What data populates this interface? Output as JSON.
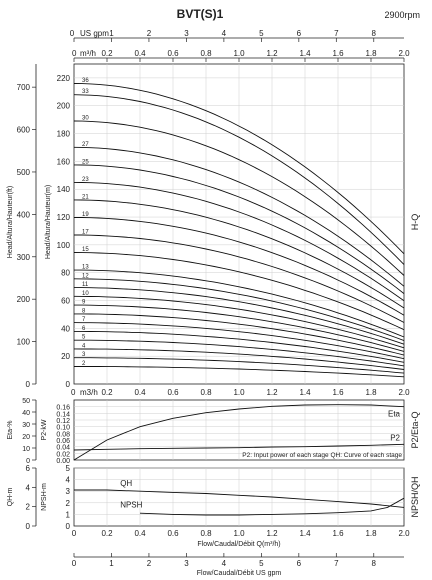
{
  "header": {
    "title": "BVT(S)1",
    "speed": "2900rpm"
  },
  "chart_data": [
    {
      "type": "line",
      "name": "H-Q",
      "side_label": "H-Q",
      "top_unit_gpm": "US gpm",
      "top_unit_m3h": "m³/h",
      "bottom_unit_m3h": "m3/h",
      "ylabel_m": "Head/Altura/Hauteur(m)",
      "ylabel_ft": "Head/Altura/Hauteur(ft)",
      "xlim": [
        0,
        2
      ],
      "ylim": [
        0,
        230
      ],
      "x_ticks": [
        "0",
        "0.2",
        "0.4",
        "0.6",
        "0.8",
        "1.0",
        "1.2",
        "1.4",
        "1.6",
        "1.8",
        "2.0"
      ],
      "x_ticks_bottom": [
        "0",
        "0.2",
        "0.4",
        "0.6",
        "0.8",
        "1.0",
        "1.2",
        "1.4",
        "1.6",
        "1.8",
        "2.0"
      ],
      "gpm_ticks": [
        "0",
        "1",
        "2",
        "3",
        "4",
        "5",
        "6",
        "7",
        "8"
      ],
      "y_ticks_m": [
        "0",
        "20",
        "40",
        "60",
        "80",
        "100",
        "120",
        "140",
        "160",
        "180",
        "200",
        "220"
      ],
      "y_ticks_ft": [
        "0",
        "100",
        "200",
        "300",
        "400",
        "500",
        "600",
        "700"
      ],
      "stage_curves": [
        {
          "label": "2",
          "head_at_0": 12.6,
          "head_at_2": 5.2
        },
        {
          "label": "3",
          "head_at_0": 18.9,
          "head_at_2": 7.8
        },
        {
          "label": "4",
          "head_at_0": 25.2,
          "head_at_2": 10.4
        },
        {
          "label": "5",
          "head_at_0": 31.5,
          "head_at_2": 13
        },
        {
          "label": "6",
          "head_at_0": 37.8,
          "head_at_2": 15.6
        },
        {
          "label": "7",
          "head_at_0": 44.1,
          "head_at_2": 18.2
        },
        {
          "label": "8",
          "head_at_0": 50.4,
          "head_at_2": 20.8
        },
        {
          "label": "9",
          "head_at_0": 56.7,
          "head_at_2": 23.4
        },
        {
          "label": "10",
          "head_at_0": 63,
          "head_at_2": 26
        },
        {
          "label": "11",
          "head_at_0": 69.3,
          "head_at_2": 28.6
        },
        {
          "label": "12",
          "head_at_0": 75.6,
          "head_at_2": 31.2
        },
        {
          "label": "13",
          "head_at_0": 81.9,
          "head_at_2": 33.8
        },
        {
          "label": "15",
          "head_at_0": 94.5,
          "head_at_2": 39
        },
        {
          "label": "17",
          "head_at_0": 107.1,
          "head_at_2": 44.2
        },
        {
          "label": "19",
          "head_at_0": 119.7,
          "head_at_2": 49.4
        },
        {
          "label": "21",
          "head_at_0": 132.3,
          "head_at_2": 54.6
        },
        {
          "label": "23",
          "head_at_0": 144.9,
          "head_at_2": 59.8
        },
        {
          "label": "25",
          "head_at_0": 157.5,
          "head_at_2": 65
        },
        {
          "label": "27",
          "head_at_0": 170.1,
          "head_at_2": 70.2
        },
        {
          "label": "30",
          "head_at_0": 189,
          "head_at_2": 78
        },
        {
          "label": "33",
          "head_at_0": 207.9,
          "head_at_2": 85.8
        },
        {
          "label": "36",
          "head_at_0": 216,
          "head_at_2": 93.6
        }
      ],
      "grid": true
    },
    {
      "type": "line",
      "name": "P2/Eta-Q",
      "side_label": "P2/Eta-Q",
      "ylabel_kw": "P2-kW",
      "ylabel_eta": "Eta-%",
      "xlim": [
        0,
        2
      ],
      "ylim": [
        0,
        0.18
      ],
      "y_ticks_kw": [
        "0.00",
        "0.02",
        "0.04",
        "0.06",
        "0.08",
        "0.10",
        "0.12",
        "0.14",
        "0.16"
      ],
      "y_ticks_eta": [
        "0",
        "10",
        "20",
        "30",
        "40",
        "50"
      ],
      "note": "P2: Input power of each stage  QH: Curve of each stage",
      "series": [
        {
          "name": "Eta",
          "x": [
            0,
            0.2,
            0.4,
            0.6,
            0.8,
            1.0,
            1.2,
            1.4,
            1.6,
            1.8,
            2.0
          ],
          "y": [
            0,
            0.06,
            0.1,
            0.125,
            0.142,
            0.153,
            0.161,
            0.165,
            0.166,
            0.165,
            0.16
          ]
        },
        {
          "name": "P2",
          "x": [
            0,
            0.2,
            0.4,
            0.6,
            0.8,
            1.0,
            1.2,
            1.4,
            1.6,
            1.8,
            2.0
          ],
          "y": [
            0.03,
            0.032,
            0.034,
            0.035,
            0.036,
            0.037,
            0.039,
            0.04,
            0.042,
            0.044,
            0.047
          ]
        }
      ],
      "grid": true
    },
    {
      "type": "line",
      "name": "NPSH/QH",
      "side_label": "NPSH/QH",
      "ylabel_npsh": "NPSH-m",
      "ylabel_qh": "QH-m",
      "xlabel": "Flow/Caudal/Débit Q(m³/h)",
      "xlim": [
        0,
        2
      ],
      "ylim": [
        0,
        5
      ],
      "y_ticks_npsh": [
        "0",
        "1",
        "2",
        "3",
        "4",
        "5"
      ],
      "y_ticks_qh": [
        "0",
        "2",
        "4",
        "6"
      ],
      "x_ticks": [
        "0",
        "0.2",
        "0.4",
        "0.6",
        "0.8",
        "1.0",
        "1.2",
        "1.4",
        "1.6",
        "1.8",
        "2.0"
      ],
      "series": [
        {
          "name": "QH",
          "x": [
            0,
            0.2,
            0.4,
            0.6,
            0.8,
            1.0,
            1.2,
            1.4,
            1.6,
            1.8,
            2.0
          ],
          "y": [
            3.1,
            3.1,
            3.0,
            2.9,
            2.8,
            2.65,
            2.5,
            2.3,
            2.1,
            1.9,
            1.6
          ]
        },
        {
          "name": "NPSH",
          "x": [
            0.4,
            0.6,
            0.8,
            1.0,
            1.2,
            1.4,
            1.6,
            1.8,
            1.9,
            2.0
          ],
          "y": [
            1.1,
            1.0,
            0.95,
            0.95,
            1.0,
            1.05,
            1.15,
            1.3,
            1.6,
            2.4
          ]
        }
      ],
      "grid": true
    },
    {
      "type": "line",
      "name": "gpm-axis",
      "xlabel": "Flow/Caudal/Débit  US gpm",
      "x_ticks": [
        "0",
        "1",
        "2",
        "3",
        "4",
        "5",
        "6",
        "7",
        "8"
      ]
    }
  ]
}
